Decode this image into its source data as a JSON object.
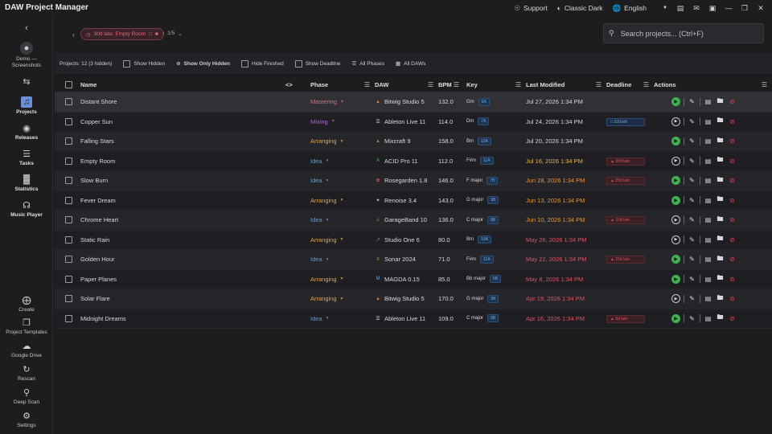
{
  "app": {
    "title": "DAW Project Manager"
  },
  "titlebar": {
    "support": "Support",
    "theme": "Classic Dark",
    "language": "English"
  },
  "sidebar": {
    "user": "Demo — Screenshots",
    "items": [
      {
        "label": "Projects",
        "icon": "music-folder-icon"
      },
      {
        "label": "Releases",
        "icon": "disc-icon"
      },
      {
        "label": "Tasks",
        "icon": "checklist-icon"
      },
      {
        "label": "Statistics",
        "icon": "bar-chart-icon"
      },
      {
        "label": "Music Player",
        "icon": "headphones-icon"
      }
    ],
    "bottom": [
      {
        "label": "Create",
        "icon": "create-folder-icon"
      },
      {
        "label": "Project Templates",
        "icon": "templates-icon"
      },
      {
        "label": "Google Drive",
        "icon": "cloud-icon"
      },
      {
        "label": "Rescan",
        "icon": "refresh-icon"
      },
      {
        "label": "Deep Scan",
        "icon": "magnifier-icon"
      },
      {
        "label": "Settings",
        "icon": "gear-icon"
      }
    ]
  },
  "breadcrumb": {
    "chip": "30d late: Empty Room",
    "page": "1/5"
  },
  "search": {
    "placeholder": "Search projects... (Ctrl+F)"
  },
  "filters": {
    "count": "Projects: 12 (3 hidden)",
    "show_hidden": "Show Hidden",
    "show_only_hidden": "Show Only Hidden",
    "hide_finished": "Hide Finished",
    "show_deadline": "Show Deadline",
    "all_phases": "All Phases",
    "all_daws": "All DAWs"
  },
  "columns": {
    "name": "Name",
    "phase": "Phase",
    "daw": "DAW",
    "bpm": "BPM",
    "key": "Key",
    "modified": "Last Modified",
    "deadline": "Deadline",
    "actions": "Actions"
  },
  "colors": {
    "mastering": "#e36a86",
    "mixing": "#b06bc8",
    "arranging": "#e8a33a",
    "idea": "#5b9be6",
    "modified_recent": "#d8d8dc",
    "modified_yellow": "#e8b84a",
    "modified_orange": "#e8943a",
    "modified_red": "#e2505f"
  },
  "rows": [
    {
      "name": "Distant Shore",
      "phase": "Mastering",
      "phase_color": "mastering",
      "daw": "Bitwig Studio 5",
      "daw_icon": "bitwig-icon",
      "bpm": "132.0",
      "key": "Gm",
      "camelot": "6A",
      "modified": "Jul 27, 2026 1:34 PM",
      "mod_color": "modified_recent",
      "deadline": "",
      "deadline_type": "",
      "playable": true
    },
    {
      "name": "Copper Sun",
      "phase": "Mixing",
      "phase_color": "mixing",
      "daw": "Ableton Live 11",
      "daw_icon": "ableton-icon",
      "bpm": "114.0",
      "key": "Dm",
      "camelot": "7A",
      "modified": "Jul 24, 2026 1:34 PM",
      "mod_color": "modified_recent",
      "deadline": "32d left",
      "deadline_type": "left",
      "playable": false
    },
    {
      "name": "Falling Stars",
      "phase": "Arranging",
      "phase_color": "arranging",
      "daw": "Mixcraft 9",
      "daw_icon": "mixcraft-icon",
      "bpm": "158.0",
      "key": "Bm",
      "camelot": "10A",
      "modified": "Jul 20, 2026 1:34 PM",
      "mod_color": "modified_recent",
      "deadline": "",
      "deadline_type": "",
      "playable": true
    },
    {
      "name": "Empty Room",
      "phase": "Idea",
      "phase_color": "idea",
      "daw": "ACID Pro 11",
      "daw_icon": "acid-icon",
      "bpm": "112.0",
      "key": "F#m",
      "camelot": "11A",
      "modified": "Jul 16, 2026 1:34 PM",
      "mod_color": "modified_yellow",
      "deadline": "30d late",
      "deadline_type": "late",
      "playable": false
    },
    {
      "name": "Slow Burn",
      "phase": "Idea",
      "phase_color": "idea",
      "daw": "Rosegarden 1.8",
      "daw_icon": "rosegarden-icon",
      "bpm": "146.0",
      "key": "F major",
      "camelot": "7B",
      "modified": "Jun 28, 2026 1:34 PM",
      "mod_color": "modified_orange",
      "deadline": "25d late",
      "deadline_type": "late",
      "playable": true
    },
    {
      "name": "Fever Dream",
      "phase": "Arranging",
      "phase_color": "arranging",
      "daw": "Renoise 3.4",
      "daw_icon": "renoise-icon",
      "bpm": "143.0",
      "key": "G major",
      "camelot": "9B",
      "modified": "Jun 13, 2026 1:34 PM",
      "mod_color": "modified_orange",
      "deadline": "",
      "deadline_type": "",
      "playable": true
    },
    {
      "name": "Chrome Heart",
      "phase": "Idea",
      "phase_color": "idea",
      "daw": "GarageBand 10",
      "daw_icon": "garageband-icon",
      "bpm": "136.0",
      "key": "C major",
      "camelot": "8B",
      "modified": "Jun 10, 2026 1:34 PM",
      "mod_color": "modified_orange",
      "deadline": "20d late",
      "deadline_type": "late",
      "playable": false
    },
    {
      "name": "Static Rain",
      "phase": "Arranging",
      "phase_color": "arranging",
      "daw": "Studio One 6",
      "daw_icon": "studio-one-icon",
      "bpm": "80.0",
      "key": "Bm",
      "camelot": "10A",
      "modified": "May 26, 2026 1:34 PM",
      "mod_color": "modified_red",
      "deadline": "",
      "deadline_type": "",
      "playable": false
    },
    {
      "name": "Golden Hour",
      "phase": "Idea",
      "phase_color": "idea",
      "daw": "Sonar 2024",
      "daw_icon": "sonar-icon",
      "bpm": "71.0",
      "key": "F#m",
      "camelot": "11A",
      "modified": "May 22, 2026 1:34 PM",
      "mod_color": "modified_red",
      "deadline": "15d late",
      "deadline_type": "late",
      "playable": true
    },
    {
      "name": "Paper Planes",
      "phase": "Arranging",
      "phase_color": "arranging",
      "daw": "MAGDA 0.15",
      "daw_icon": "magda-icon",
      "bpm": "85.0",
      "key": "Bb major",
      "camelot": "6B",
      "modified": "May 8, 2026 1:34 PM",
      "mod_color": "modified_red",
      "deadline": "",
      "deadline_type": "",
      "playable": true
    },
    {
      "name": "Solar Flare",
      "phase": "Arranging",
      "phase_color": "arranging",
      "daw": "Bitwig Studio 5",
      "daw_icon": "bitwig-icon",
      "bpm": "170.0",
      "key": "G major",
      "camelot": "9B",
      "modified": "Apr 19, 2026 1:34 PM",
      "mod_color": "modified_red",
      "deadline": "",
      "deadline_type": "",
      "playable": false
    },
    {
      "name": "Midnight Dreams",
      "phase": "Idea",
      "phase_color": "idea",
      "daw": "Ableton Live 11",
      "daw_icon": "ableton-icon",
      "bpm": "109.0",
      "key": "C major",
      "camelot": "8B",
      "modified": "Apr 16, 2026 1:34 PM",
      "mod_color": "modified_red",
      "deadline": "5d late",
      "deadline_type": "late",
      "playable": true
    }
  ]
}
